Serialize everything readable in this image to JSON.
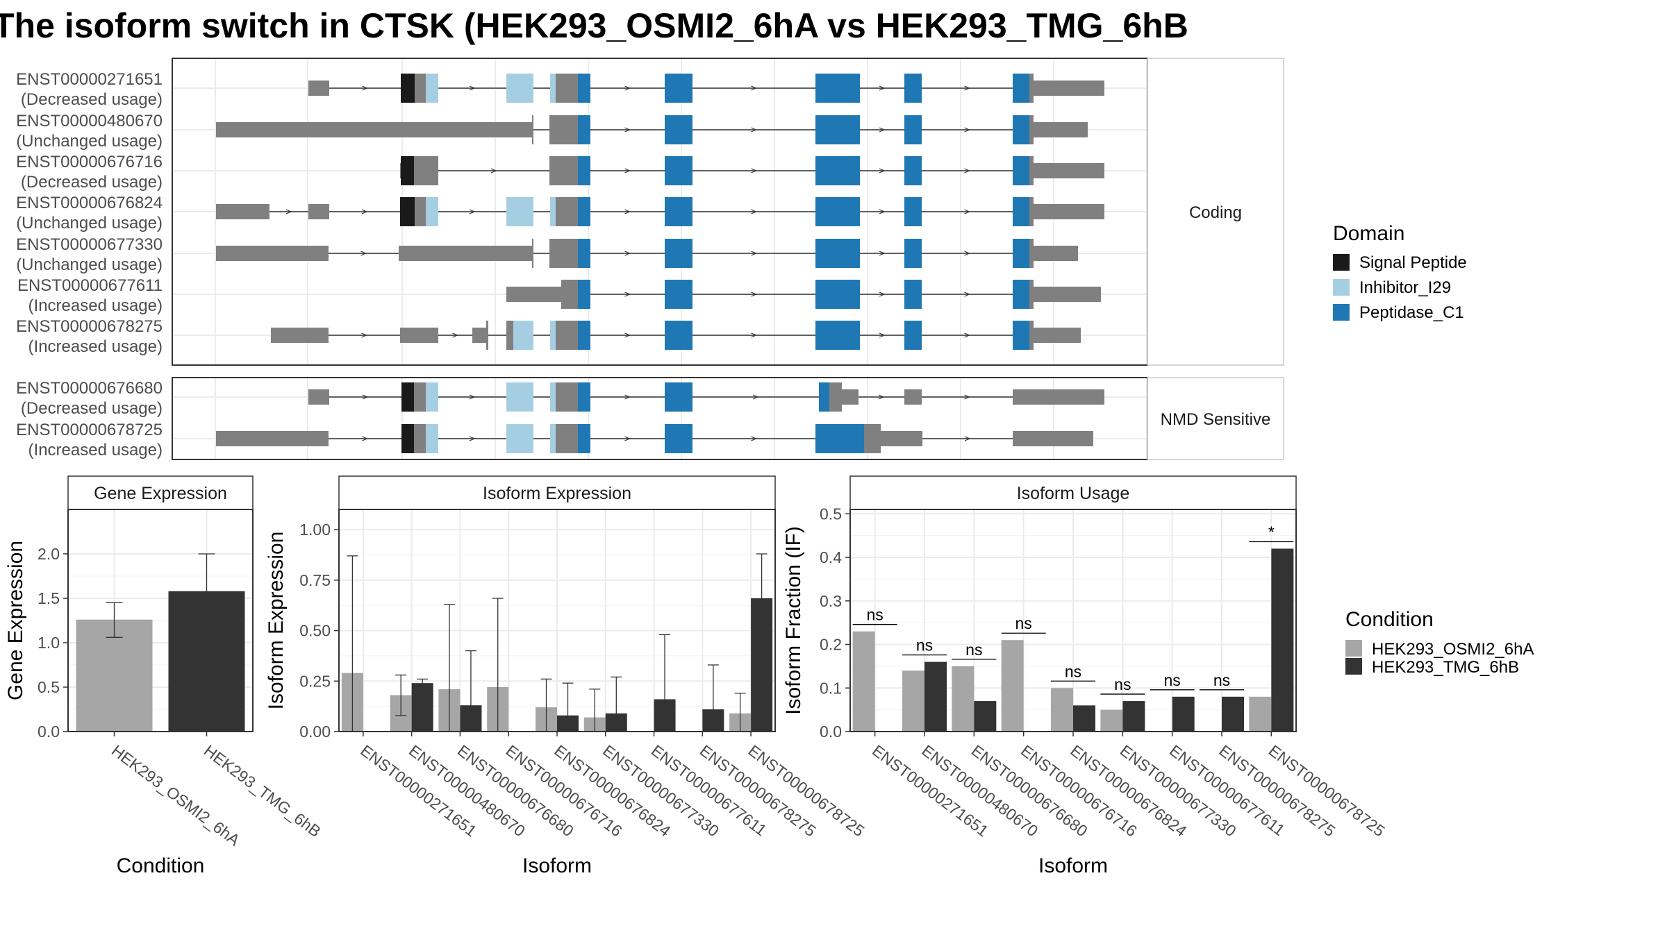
{
  "title": "The isoform switch in CTSK (HEK293_OSMI2_6hA vs HEK293_TMG_6hB",
  "colors": {
    "utr": "#808080",
    "signal_peptide": "#1a1a1a",
    "inhibitor_i29": "#a6cee3",
    "peptidase_c1": "#1f78b4",
    "condition_a": "#a6a6a6",
    "condition_b": "#333333",
    "panel_border": "#333333",
    "strip_bg": "#ffffff",
    "grid": "#ebebeb",
    "text": "#1a1a1a",
    "axis_text": "#4d4d4d"
  },
  "structure": {
    "facets": [
      {
        "label": "Coding",
        "isoforms": [
          {
            "id": "ENST00000271651",
            "usage": "(Decreased usage)"
          },
          {
            "id": "ENST00000480670",
            "usage": "(Unchanged usage)"
          },
          {
            "id": "ENST00000676716",
            "usage": "(Decreased usage)"
          },
          {
            "id": "ENST00000676824",
            "usage": "(Unchanged usage)"
          },
          {
            "id": "ENST00000677330",
            "usage": "(Unchanged usage)"
          },
          {
            "id": "ENST00000677611",
            "usage": "(Increased usage)"
          },
          {
            "id": "ENST00000678275",
            "usage": "(Increased usage)"
          }
        ]
      },
      {
        "label": "NMD Sensitive",
        "isoforms": [
          {
            "id": "ENST00000676680",
            "usage": "(Decreased usage)"
          },
          {
            "id": "ENST00000678725",
            "usage": "(Increased usage)"
          }
        ]
      }
    ],
    "legend": {
      "title": "Domain",
      "items": [
        {
          "label": "Signal Peptide",
          "color": "#1a1a1a"
        },
        {
          "label": "Inhibitor_I29",
          "color": "#a6cee3"
        },
        {
          "label": "Peptidase_C1",
          "color": "#1f78b4"
        }
      ]
    }
  },
  "chart_data": [
    {
      "type": "bar",
      "panel": "Gene Expression",
      "xlabel": "Condition",
      "ylabel": "Gene Expression",
      "categories": [
        "HEK293_OSMI2_6hA",
        "HEK293_TMG_6hB"
      ],
      "values": [
        1.26,
        1.58
      ],
      "error_low": [
        1.06,
        1.16
      ],
      "error_high": [
        1.45,
        2.0
      ],
      "ylim": [
        0,
        2.5
      ],
      "yticks": [
        "0.0",
        "0.5",
        "1.0",
        "1.5",
        "2.0"
      ],
      "grid": true
    },
    {
      "type": "bar",
      "panel": "Isoform Expression",
      "xlabel": "Isoform",
      "ylabel": "Isoform Expression",
      "categories": [
        "ENST00000271651",
        "ENST00000480670",
        "ENST00000676680",
        "ENST00000676716",
        "ENST00000676824",
        "ENST00000677330",
        "ENST00000677611",
        "ENST00000678275",
        "ENST00000678725"
      ],
      "series": [
        {
          "name": "HEK293_OSMI2_6hA",
          "values": [
            0.29,
            0.18,
            0.21,
            0.22,
            0.12,
            0.07,
            0.0,
            0.0,
            0.09
          ],
          "error_low": [
            0.0,
            0.08,
            0.0,
            0.0,
            0.0,
            0.0,
            0.0,
            0.0,
            0.0
          ],
          "error_high": [
            0.87,
            0.28,
            0.63,
            0.66,
            0.26,
            0.21,
            0.0,
            0.0,
            0.19
          ]
        },
        {
          "name": "HEK293_TMG_6hB",
          "values": [
            0.0,
            0.24,
            0.13,
            0.0,
            0.08,
            0.09,
            0.16,
            0.11,
            0.66
          ],
          "error_low": [
            0.0,
            0.23,
            0.0,
            0.0,
            0.0,
            0.0,
            0.0,
            0.0,
            0.44
          ],
          "error_high": [
            0.0,
            0.26,
            0.4,
            0.0,
            0.24,
            0.27,
            0.48,
            0.33,
            0.88
          ]
        }
      ],
      "ylim": [
        0,
        1.1
      ],
      "yticks": [
        "0.00",
        "0.25",
        "0.50",
        "0.75",
        "1.00"
      ],
      "grid": true
    },
    {
      "type": "bar",
      "panel": "Isoform Usage",
      "xlabel": "Isoform",
      "ylabel": "Isoform Fraction (IF)",
      "categories": [
        "ENST00000271651",
        "ENST00000480670",
        "ENST00000676680",
        "ENST00000676716",
        "ENST00000676824",
        "ENST00000677330",
        "ENST00000677611",
        "ENST00000678275",
        "ENST00000678725"
      ],
      "series": [
        {
          "name": "HEK293_OSMI2_6hA",
          "values": [
            0.23,
            0.14,
            0.15,
            0.21,
            0.1,
            0.05,
            0.0,
            0.0,
            0.08
          ]
        },
        {
          "name": "HEK293_TMG_6hB",
          "values": [
            0.0,
            0.16,
            0.07,
            0.0,
            0.06,
            0.07,
            0.08,
            0.08,
            0.42
          ]
        }
      ],
      "significance": [
        "ns",
        "ns",
        "ns",
        "ns",
        "ns",
        "ns",
        "ns",
        "ns",
        "*"
      ],
      "ylim": [
        0,
        0.51
      ],
      "yticks": [
        "0.0",
        "0.1",
        "0.2",
        "0.3",
        "0.4",
        "0.5"
      ],
      "grid": true
    }
  ],
  "condition_legend": {
    "title": "Condition",
    "items": [
      {
        "label": "HEK293_OSMI2_6hA",
        "color": "#a6a6a6"
      },
      {
        "label": "HEK293_TMG_6hB",
        "color": "#333333"
      }
    ]
  }
}
